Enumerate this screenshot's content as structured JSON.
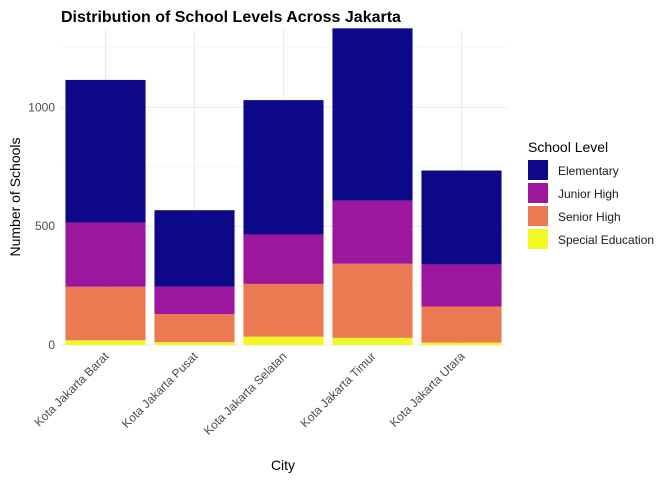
{
  "chart_data": {
    "type": "bar",
    "stacked": true,
    "title": "Distribution of School Levels Across Jakarta",
    "xlabel": "City",
    "ylabel": "Number of Schools",
    "categories": [
      "Kota Jakarta Barat",
      "Kota Jakarta Pusat",
      "Kota Jakarta Selatan",
      "Kota Jakarta Timur",
      "Kota Jakarta Utara"
    ],
    "series": [
      {
        "name": "Special Education",
        "color": "#f0f921",
        "values": [
          20,
          12,
          35,
          30,
          10
        ]
      },
      {
        "name": "Senior High",
        "color": "#ed7953",
        "values": [
          225,
          118,
          222,
          312,
          152
        ]
      },
      {
        "name": "Junior High",
        "color": "#9c179e",
        "values": [
          270,
          115,
          208,
          265,
          177
        ]
      },
      {
        "name": "Elementary",
        "color": "#0d0887",
        "values": [
          600,
          322,
          565,
          725,
          395
        ]
      }
    ],
    "ylim": [
      0,
      1325
    ],
    "yticks": [
      0,
      500,
      1000
    ],
    "grid": true,
    "legend": {
      "title": "School Level",
      "position": "right",
      "order": [
        "Elementary",
        "Junior High",
        "Senior High",
        "Special Education"
      ]
    }
  }
}
